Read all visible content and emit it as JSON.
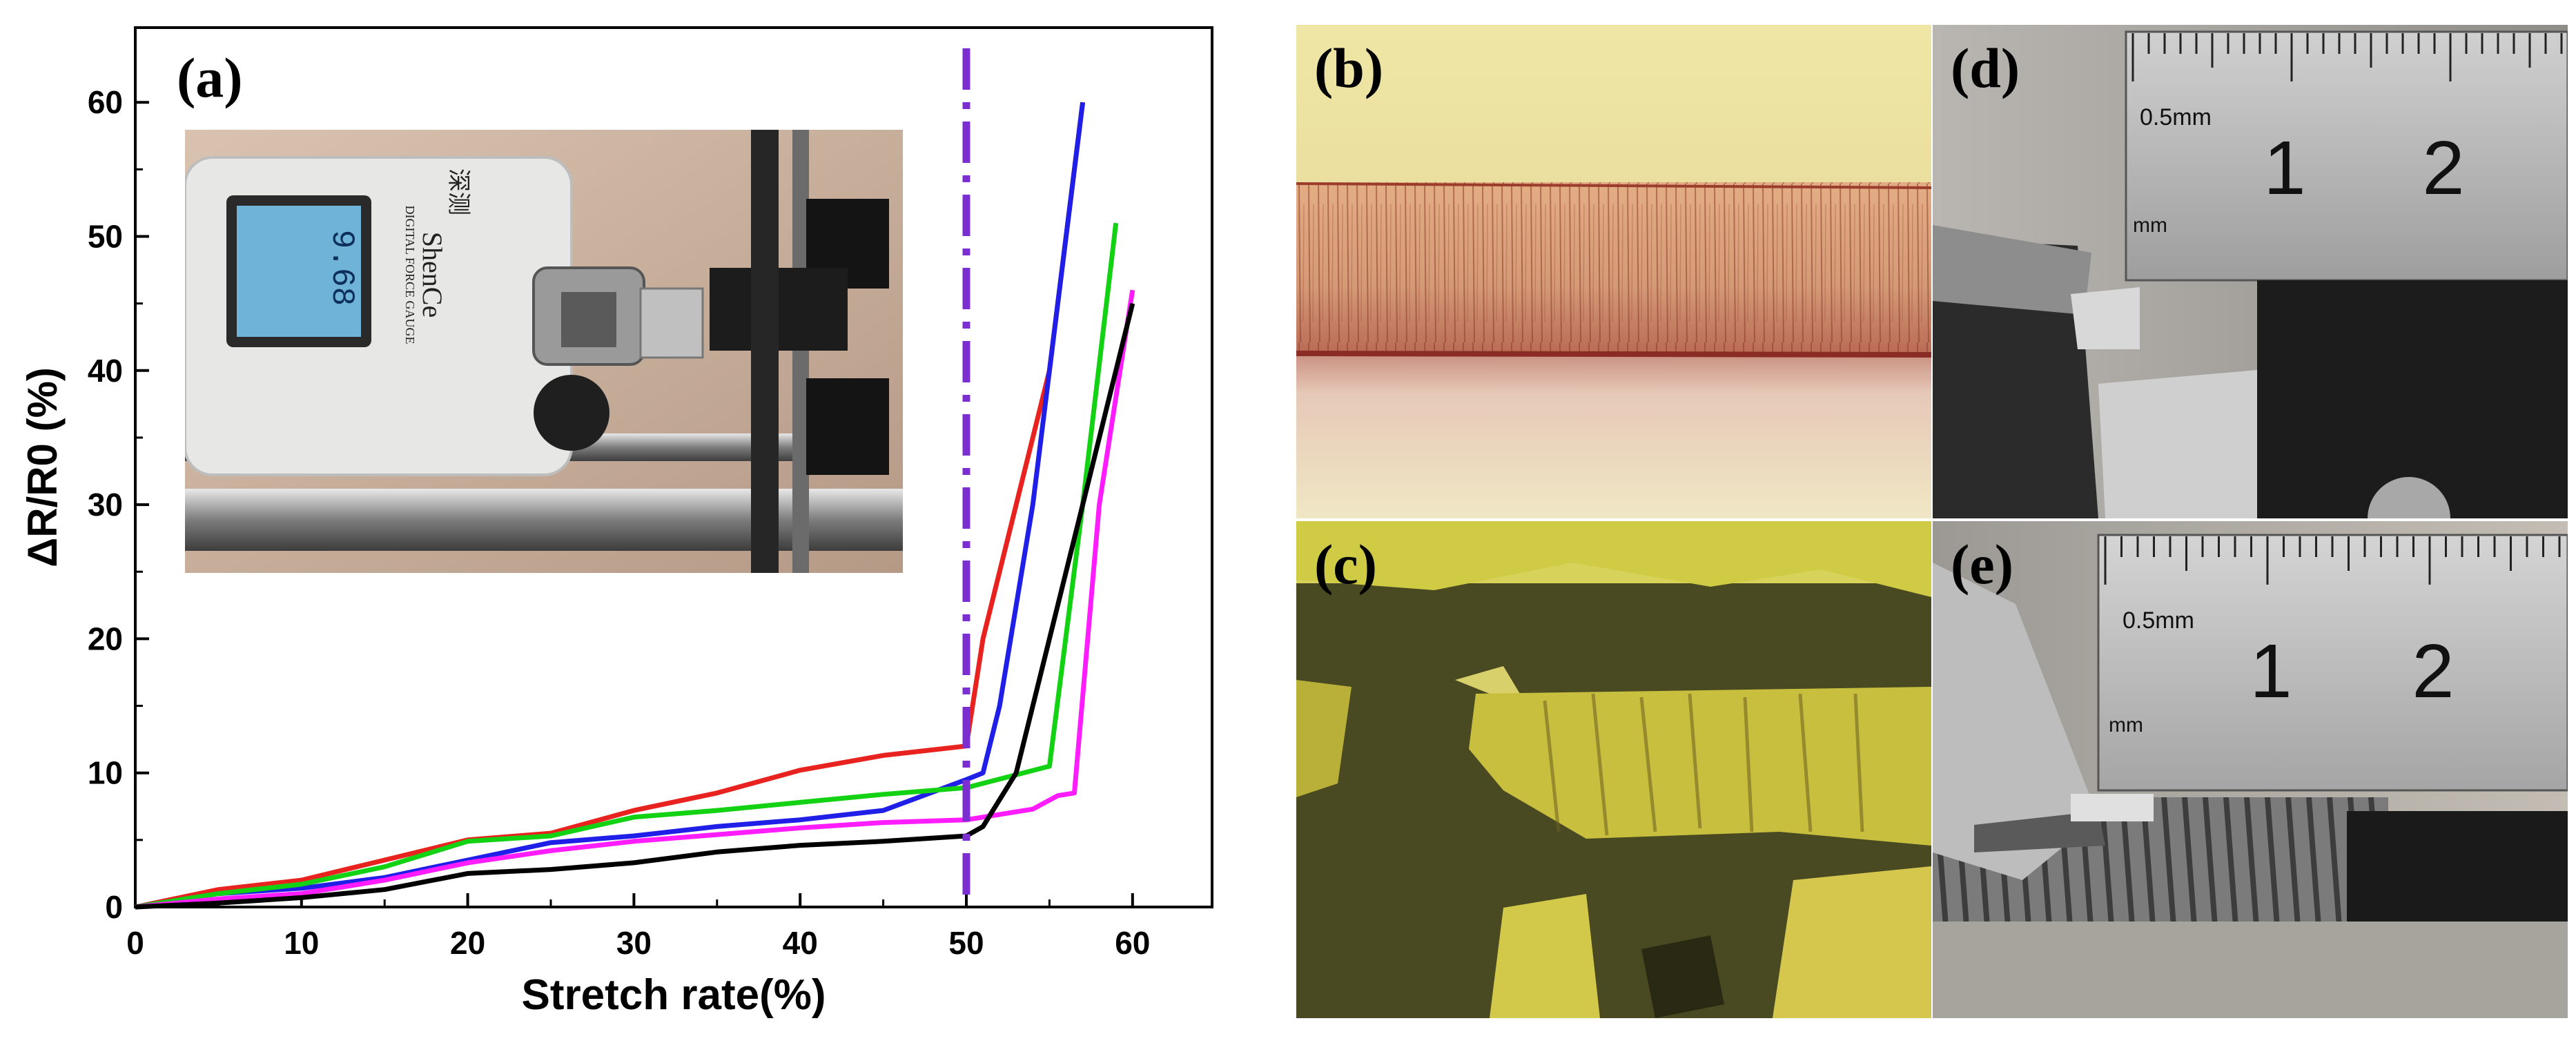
{
  "chart_data": {
    "type": "line",
    "panel_label": "(a)",
    "xlabel": "Stretch rate(%)",
    "ylabel": "ΔR/R0 (%)",
    "xlim": [
      0,
      65
    ],
    "ylim": [
      0,
      65
    ],
    "xticks": [
      "0",
      "10",
      "20",
      "30",
      "40",
      "50",
      "60"
    ],
    "yticks": [
      "0",
      "10",
      "20",
      "30",
      "40",
      "50",
      "60"
    ],
    "grid": false,
    "legend": "none",
    "reference_line": {
      "x": 50,
      "style": "dash-dot",
      "color": "#7b2fd0"
    },
    "series": [
      {
        "color": "#e8231f",
        "points": [
          [
            0,
            0
          ],
          [
            5,
            1.3
          ],
          [
            10,
            2
          ],
          [
            15,
            3.5
          ],
          [
            20,
            5
          ],
          [
            25,
            5.5
          ],
          [
            30,
            7.2
          ],
          [
            35,
            8.5
          ],
          [
            40,
            10.2
          ],
          [
            45,
            11.3
          ],
          [
            50,
            12
          ],
          [
            51,
            20
          ],
          [
            53,
            30
          ],
          [
            55,
            40
          ],
          [
            57,
            60
          ]
        ]
      },
      {
        "color": "#1f1fe8",
        "points": [
          [
            0,
            0
          ],
          [
            5,
            1
          ],
          [
            10,
            1.4
          ],
          [
            15,
            2.2
          ],
          [
            20,
            3.5
          ],
          [
            25,
            4.8
          ],
          [
            30,
            5.3
          ],
          [
            35,
            6
          ],
          [
            40,
            6.5
          ],
          [
            45,
            7.2
          ],
          [
            50,
            9.5
          ],
          [
            51,
            10
          ],
          [
            52,
            15
          ],
          [
            54,
            30
          ],
          [
            55,
            40
          ],
          [
            57,
            60
          ]
        ]
      },
      {
        "color": "#13d113",
        "points": [
          [
            0,
            0
          ],
          [
            5,
            1
          ],
          [
            10,
            1.7
          ],
          [
            15,
            3
          ],
          [
            20,
            4.9
          ],
          [
            25,
            5.3
          ],
          [
            30,
            6.7
          ],
          [
            35,
            7.2
          ],
          [
            40,
            7.8
          ],
          [
            45,
            8.4
          ],
          [
            50,
            8.9
          ],
          [
            55,
            10.5
          ],
          [
            57,
            30
          ],
          [
            59,
            51
          ]
        ]
      },
      {
        "color": "#ff1cff",
        "points": [
          [
            0,
            0
          ],
          [
            5,
            0.6
          ],
          [
            10,
            1
          ],
          [
            15,
            2
          ],
          [
            20,
            3.3
          ],
          [
            25,
            4.2
          ],
          [
            30,
            4.9
          ],
          [
            35,
            5.4
          ],
          [
            40,
            5.9
          ],
          [
            45,
            6.3
          ],
          [
            50,
            6.5
          ],
          [
            54,
            7.3
          ],
          [
            55.5,
            8.3
          ],
          [
            56.5,
            8.5
          ],
          [
            58,
            30
          ],
          [
            60,
            46
          ]
        ]
      },
      {
        "color": "#000000",
        "points": [
          [
            0,
            0
          ],
          [
            5,
            0.3
          ],
          [
            10,
            0.7
          ],
          [
            15,
            1.3
          ],
          [
            20,
            2.5
          ],
          [
            25,
            2.8
          ],
          [
            30,
            3.3
          ],
          [
            35,
            4.1
          ],
          [
            40,
            4.6
          ],
          [
            45,
            4.9
          ],
          [
            50,
            5.3
          ],
          [
            51,
            6
          ],
          [
            53,
            10
          ],
          [
            55,
            20
          ],
          [
            57,
            30
          ],
          [
            60,
            45
          ]
        ]
      }
    ]
  },
  "inset_photo": {
    "brand": "ShenCe",
    "brand_chinese": "深测",
    "subtitle": "DIGITAL FORCE GAUGE",
    "reading": "9.68"
  },
  "panels": {
    "b": {
      "label": "(b)"
    },
    "c": {
      "label": "(c)"
    },
    "d": {
      "label": "(d)",
      "ruler_unit": "0.5mm",
      "ruler_mm": "mm",
      "ruler_numbers": [
        "1",
        "2"
      ]
    },
    "e": {
      "label": "(e)",
      "ruler_unit": "0.5mm",
      "ruler_mm": "mm",
      "ruler_numbers": [
        "1",
        "2"
      ]
    }
  }
}
